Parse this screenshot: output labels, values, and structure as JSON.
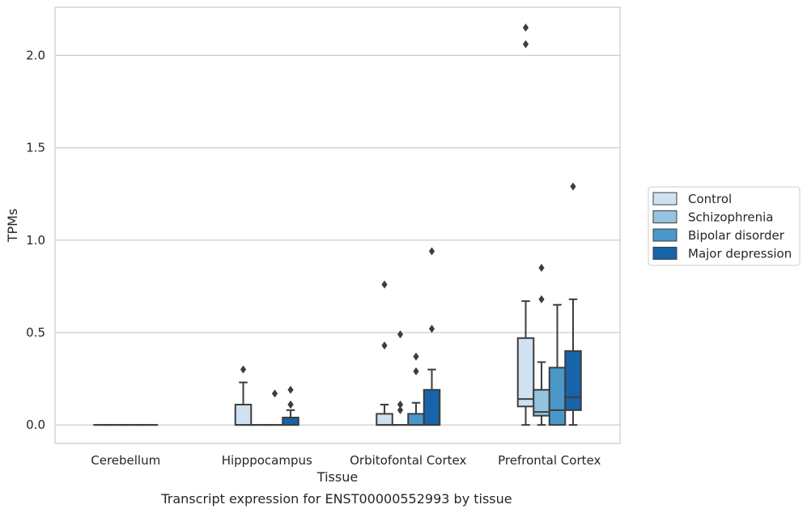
{
  "chart_data": {
    "type": "box",
    "xlabel": "Tissue",
    "ylabel": "TPMs",
    "caption": "Transcript expression for ENST00000552993 by tissue",
    "ylim": [
      -0.1,
      2.26
    ],
    "yticks": [
      0.0,
      0.5,
      1.0,
      1.5,
      2.0
    ],
    "ytick_labels": [
      "0.0",
      "0.5",
      "1.0",
      "1.5",
      "2.0"
    ],
    "grid": "horizontal",
    "legend_position": "right",
    "categories": [
      "Cerebellum",
      "Hipppocampus",
      "Orbitofontal Cortex",
      "Prefrontal Cortex"
    ],
    "series": [
      {
        "name": "Control",
        "color": "#d0e1f2",
        "boxes": [
          {
            "min": 0.0,
            "q1": 0.0,
            "median": 0.0,
            "q3": 0.0,
            "max": 0.0,
            "outliers": []
          },
          {
            "min": 0.0,
            "q1": 0.0,
            "median": 0.0,
            "q3": 0.11,
            "max": 0.23,
            "outliers": [
              0.3
            ]
          },
          {
            "min": 0.0,
            "q1": 0.0,
            "median": 0.0,
            "q3": 0.06,
            "max": 0.11,
            "outliers": [
              0.43,
              0.76
            ]
          },
          {
            "min": 0.0,
            "q1": 0.1,
            "median": 0.14,
            "q3": 0.47,
            "max": 0.67,
            "outliers": [
              2.06,
              2.15
            ]
          }
        ]
      },
      {
        "name": "Schizophrenia",
        "color": "#94c4df",
        "boxes": [
          {
            "min": 0.0,
            "q1": 0.0,
            "median": 0.0,
            "q3": 0.0,
            "max": 0.0,
            "outliers": []
          },
          {
            "min": 0.0,
            "q1": 0.0,
            "median": 0.0,
            "q3": 0.0,
            "max": 0.0,
            "outliers": []
          },
          {
            "min": 0.0,
            "q1": 0.0,
            "median": 0.0,
            "q3": 0.0,
            "max": 0.0,
            "outliers": [
              0.08,
              0.11,
              0.49
            ]
          },
          {
            "min": 0.0,
            "q1": 0.05,
            "median": 0.07,
            "q3": 0.19,
            "max": 0.34,
            "outliers": [
              0.68,
              0.85
            ]
          }
        ]
      },
      {
        "name": "Bipolar disorder",
        "color": "#4a98c9",
        "boxes": [
          {
            "min": 0.0,
            "q1": 0.0,
            "median": 0.0,
            "q3": 0.0,
            "max": 0.0,
            "outliers": []
          },
          {
            "min": 0.0,
            "q1": 0.0,
            "median": 0.0,
            "q3": 0.0,
            "max": 0.0,
            "outliers": [
              0.17
            ]
          },
          {
            "min": 0.0,
            "q1": 0.0,
            "median": 0.0,
            "q3": 0.06,
            "max": 0.12,
            "outliers": [
              0.29,
              0.37
            ]
          },
          {
            "min": 0.0,
            "q1": 0.0,
            "median": 0.08,
            "q3": 0.31,
            "max": 0.65,
            "outliers": []
          }
        ]
      },
      {
        "name": "Major depression",
        "color": "#1764ab",
        "boxes": [
          {
            "min": 0.0,
            "q1": 0.0,
            "median": 0.0,
            "q3": 0.0,
            "max": 0.0,
            "outliers": []
          },
          {
            "min": 0.0,
            "q1": 0.0,
            "median": 0.0,
            "q3": 0.04,
            "max": 0.08,
            "outliers": [
              0.11,
              0.11,
              0.19
            ]
          },
          {
            "min": 0.0,
            "q1": 0.0,
            "median": 0.0,
            "q3": 0.19,
            "max": 0.3,
            "outliers": [
              0.52,
              0.94
            ]
          },
          {
            "min": 0.0,
            "q1": 0.08,
            "median": 0.15,
            "q3": 0.4,
            "max": 0.68,
            "outliers": [
              1.29
            ]
          }
        ]
      }
    ]
  }
}
